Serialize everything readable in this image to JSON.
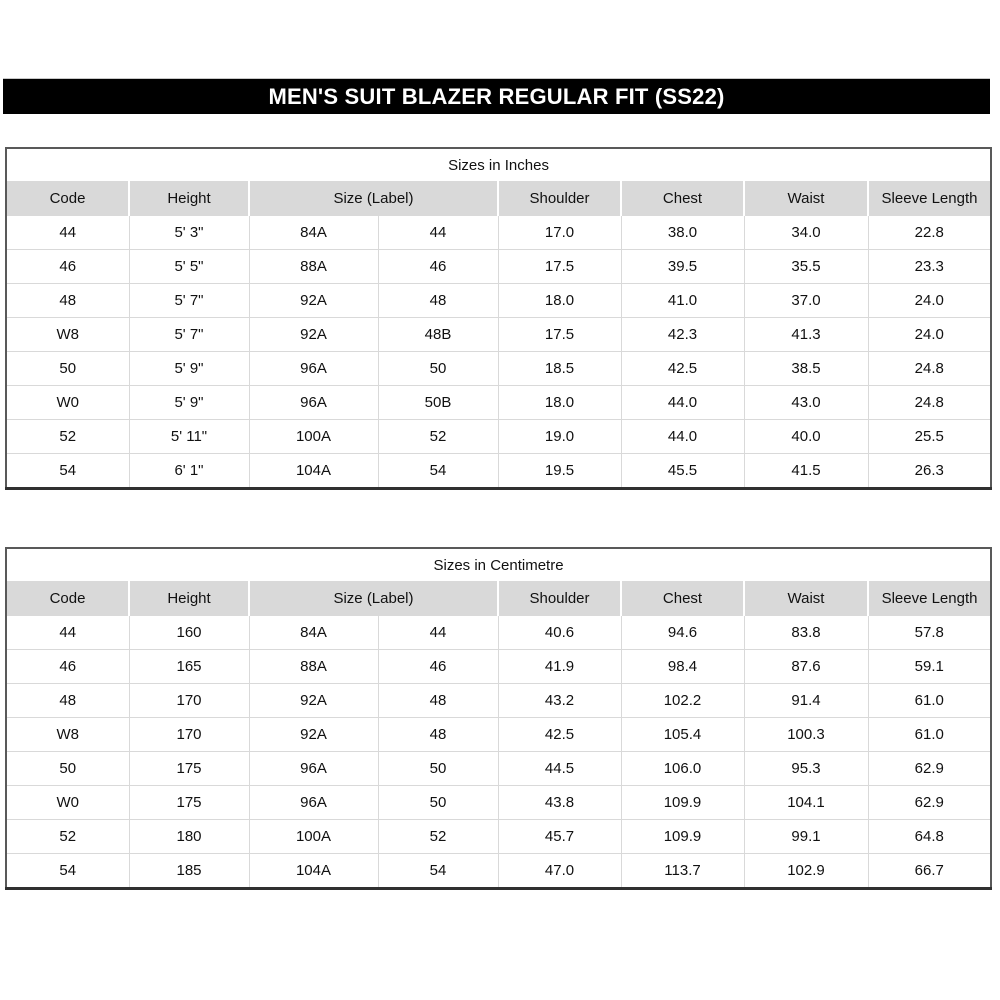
{
  "title_bar": {
    "text": "MEN'S SUIT BLAZER REGULAR FIT (SS22)",
    "bg": "#000000",
    "fg": "#ffffff"
  },
  "columns": [
    "Code",
    "Height",
    "Size (Label)",
    "Shoulder",
    "Chest",
    "Waist",
    "Sleeve Length"
  ],
  "tables": [
    {
      "title": "Sizes in Inches",
      "rows": [
        [
          "44",
          "5' 3\"",
          "84A",
          "44",
          "17.0",
          "38.0",
          "34.0",
          "22.8"
        ],
        [
          "46",
          "5' 5\"",
          "88A",
          "46",
          "17.5",
          "39.5",
          "35.5",
          "23.3"
        ],
        [
          "48",
          "5' 7\"",
          "92A",
          "48",
          "18.0",
          "41.0",
          "37.0",
          "24.0"
        ],
        [
          "W8",
          "5' 7\"",
          "92A",
          "48B",
          "17.5",
          "42.3",
          "41.3",
          "24.0"
        ],
        [
          "50",
          "5' 9\"",
          "96A",
          "50",
          "18.5",
          "42.5",
          "38.5",
          "24.8"
        ],
        [
          "W0",
          "5' 9\"",
          "96A",
          "50B",
          "18.0",
          "44.0",
          "43.0",
          "24.8"
        ],
        [
          "52",
          "5' 11\"",
          "100A",
          "52",
          "19.0",
          "44.0",
          "40.0",
          "25.5"
        ],
        [
          "54",
          "6' 1\"",
          "104A",
          "54",
          "19.5",
          "45.5",
          "41.5",
          "26.3"
        ]
      ]
    },
    {
      "title": "Sizes in Centimetre",
      "rows": [
        [
          "44",
          "160",
          "84A",
          "44",
          "40.6",
          "94.6",
          "83.8",
          "57.8"
        ],
        [
          "46",
          "165",
          "88A",
          "46",
          "41.9",
          "98.4",
          "87.6",
          "59.1"
        ],
        [
          "48",
          "170",
          "92A",
          "48",
          "43.2",
          "102.2",
          "91.4",
          "61.0"
        ],
        [
          "W8",
          "170",
          "92A",
          "48",
          "42.5",
          "105.4",
          "100.3",
          "61.0"
        ],
        [
          "50",
          "175",
          "96A",
          "50",
          "44.5",
          "106.0",
          "95.3",
          "62.9"
        ],
        [
          "W0",
          "175",
          "96A",
          "50",
          "43.8",
          "109.9",
          "104.1",
          "62.9"
        ],
        [
          "52",
          "180",
          "100A",
          "52",
          "45.7",
          "109.9",
          "99.1",
          "64.8"
        ],
        [
          "54",
          "185",
          "104A",
          "54",
          "47.0",
          "113.7",
          "102.9",
          "66.7"
        ]
      ]
    }
  ],
  "colors": {
    "header_bg": "#d9d9d9",
    "grid_line": "#d9d9d9",
    "outer_border": "#595959",
    "title_bar_bg": "#000000"
  }
}
